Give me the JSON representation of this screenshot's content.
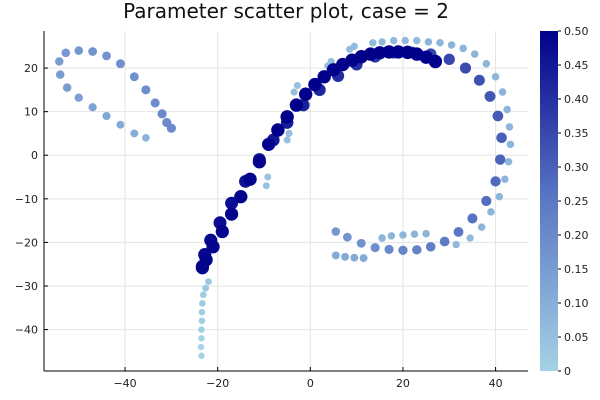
{
  "chart_data": {
    "type": "scatter",
    "title": "Parameter scatter plot, case = 2",
    "xlabel": "",
    "ylabel": "",
    "xlim": [
      -57.5,
      47
    ],
    "ylim": [
      -49.5,
      28.5
    ],
    "xticks": [
      -40,
      -20,
      0,
      20,
      40
    ],
    "yticks": [
      -40,
      -30,
      -20,
      -10,
      0,
      10,
      20
    ],
    "xtick_labels": [
      "−40",
      "−20",
      "0",
      "20",
      "40"
    ],
    "ytick_labels": [
      "−40",
      "−30",
      "−20",
      "−10",
      "0",
      "10",
      "20"
    ],
    "grid": true,
    "legend": "none",
    "colorbar": {
      "min": 0,
      "max": 0.5,
      "ticks": [
        0,
        0.05,
        0.1,
        0.15,
        0.2,
        0.25,
        0.3,
        0.35,
        0.4,
        0.45,
        0.5
      ],
      "tick_labels": [
        "0",
        "0.05",
        "0.10",
        "0.15",
        "0.20",
        "0.25",
        "0.30",
        "0.35",
        "0.40",
        "0.45",
        "0.50"
      ],
      "color_low": "#a5d2e5",
      "color_mid": "#5b78c4",
      "color_high": "#00008b"
    },
    "series": [
      {
        "points": [
          [
            -23.5,
            -46
          ],
          [
            -23.6,
            -44
          ],
          [
            -23.5,
            -42
          ],
          [
            -23.5,
            -40
          ],
          [
            -23.4,
            -38
          ],
          [
            -23.4,
            -36
          ],
          [
            -23.3,
            -34
          ],
          [
            -23.1,
            -32
          ],
          [
            -22.6,
            -30.5
          ],
          [
            -22,
            -29
          ]
        ],
        "c": [
          0.0,
          0.0,
          0.0,
          0.01,
          0.01,
          0.01,
          0.02,
          0.02,
          0.03,
          0.03
        ]
      },
      {
        "points": [
          [
            -35.5,
            4
          ],
          [
            -38,
            5
          ],
          [
            -41,
            7
          ],
          [
            -44,
            9
          ],
          [
            -47,
            11
          ],
          [
            -50,
            13.2
          ],
          [
            -52.5,
            15.5
          ],
          [
            -54,
            18.5
          ],
          [
            -54.2,
            21.5
          ],
          [
            -52.8,
            23.5
          ],
          [
            -50,
            24
          ],
          [
            -47,
            23.8
          ],
          [
            -44,
            22.8
          ],
          [
            -41,
            21
          ],
          [
            -38,
            18
          ],
          [
            -35.5,
            15
          ],
          [
            -33.5,
            12
          ],
          [
            -32,
            9.5
          ],
          [
            -31,
            7.5
          ],
          [
            -30,
            6.2
          ]
        ],
        "c": [
          0.09,
          0.1,
          0.11,
          0.12,
          0.13,
          0.14,
          0.15,
          0.15,
          0.15,
          0.16,
          0.16,
          0.17,
          0.17,
          0.18,
          0.18,
          0.19,
          0.19,
          0.2,
          0.2,
          0.2
        ]
      },
      {
        "points": [
          [
            -9.5,
            -7
          ],
          [
            -9.2,
            -5
          ],
          [
            -5,
            3.5
          ],
          [
            -4.6,
            5
          ],
          [
            -3.5,
            14.5
          ],
          [
            -2.8,
            16
          ],
          [
            3.8,
            20.5
          ],
          [
            4.5,
            21.5
          ],
          [
            8.5,
            24.3
          ],
          [
            9.5,
            25
          ],
          [
            13.5,
            25.8
          ],
          [
            15.5,
            26
          ],
          [
            18,
            26.3
          ],
          [
            20.5,
            26.3
          ],
          [
            23,
            26.3
          ],
          [
            25.5,
            26
          ],
          [
            28,
            25.8
          ],
          [
            30.5,
            25.3
          ],
          [
            33,
            24.5
          ],
          [
            35.5,
            23.2
          ],
          [
            38,
            21
          ],
          [
            40,
            18
          ],
          [
            41.5,
            14.5
          ],
          [
            42.5,
            10.5
          ],
          [
            43,
            6.5
          ],
          [
            43.2,
            2.5
          ],
          [
            42.8,
            -1.5
          ],
          [
            42,
            -5.5
          ],
          [
            40.8,
            -9.5
          ],
          [
            39,
            -13
          ],
          [
            37,
            -16.5
          ],
          [
            34.5,
            -19
          ],
          [
            31.5,
            -20.5
          ]
        ],
        "c": [
          0.04,
          0.04,
          0.05,
          0.05,
          0.05,
          0.05,
          0.06,
          0.06,
          0.06,
          0.06,
          0.07,
          0.07,
          0.07,
          0.07,
          0.07,
          0.08,
          0.08,
          0.08,
          0.08,
          0.08,
          0.08,
          0.08,
          0.08,
          0.08,
          0.08,
          0.08,
          0.08,
          0.08,
          0.08,
          0.08,
          0.08,
          0.07,
          0.07
        ]
      },
      {
        "points": [
          [
            5.5,
            -23
          ],
          [
            7.5,
            -23.3
          ],
          [
            9.5,
            -23.5
          ],
          [
            11.5,
            -23.6
          ],
          [
            15.5,
            -19
          ],
          [
            17.5,
            -18.5
          ],
          [
            20,
            -18.3
          ],
          [
            22.5,
            -18.1
          ],
          [
            25,
            -18
          ]
        ],
        "c": [
          0.11,
          0.11,
          0.11,
          0.11,
          0.08,
          0.08,
          0.08,
          0.08,
          0.08
        ]
      },
      {
        "points": [
          [
            5.5,
            -17.5
          ],
          [
            8,
            -18.8
          ],
          [
            11,
            -20.2
          ],
          [
            14,
            -21.2
          ],
          [
            17,
            -21.6
          ],
          [
            20,
            -21.8
          ],
          [
            23,
            -21.7
          ],
          [
            26,
            -21
          ],
          [
            29,
            -19.8
          ],
          [
            32,
            -17.6
          ],
          [
            35,
            -14.5
          ],
          [
            38,
            -10.5
          ],
          [
            40,
            -6
          ],
          [
            41,
            -1
          ],
          [
            41.3,
            4
          ],
          [
            40.5,
            9
          ],
          [
            38.8,
            13.5
          ],
          [
            36.5,
            17.2
          ],
          [
            33.5,
            20
          ],
          [
            30,
            22
          ],
          [
            26,
            23.2
          ],
          [
            22,
            23.6
          ],
          [
            18,
            23.5
          ],
          [
            14,
            22.6
          ],
          [
            10,
            20.8
          ],
          [
            6,
            18.2
          ],
          [
            2,
            15
          ],
          [
            -1.5,
            11.5
          ],
          [
            -5,
            7.5
          ],
          [
            -8,
            3.5
          ],
          [
            -11,
            -1
          ],
          [
            -14,
            -6
          ],
          [
            -17,
            -11
          ],
          [
            -19.5,
            -15.5
          ],
          [
            -21.5,
            -19.5
          ],
          [
            -22.8,
            -22.8
          ],
          [
            -23.3,
            -25.5
          ]
        ],
        "c": [
          0.16,
          0.17,
          0.18,
          0.19,
          0.2,
          0.21,
          0.22,
          0.23,
          0.24,
          0.25,
          0.26,
          0.27,
          0.28,
          0.29,
          0.3,
          0.31,
          0.32,
          0.33,
          0.34,
          0.35,
          0.36,
          0.37,
          0.38,
          0.39,
          0.4,
          0.41,
          0.42,
          0.43,
          0.44,
          0.45,
          0.46,
          0.46,
          0.47,
          0.47,
          0.48,
          0.48,
          0.48
        ]
      },
      {
        "points": [
          [
            -23.3,
            -25.8
          ],
          [
            -22.5,
            -24
          ],
          [
            -21,
            -21
          ],
          [
            -19,
            -17.5
          ],
          [
            -17,
            -13.5
          ],
          [
            -15,
            -9.5
          ],
          [
            -13,
            -5.5
          ],
          [
            -11,
            -1.5
          ],
          [
            -9,
            2.5
          ],
          [
            -7,
            5.8
          ],
          [
            -5,
            8.8
          ],
          [
            -3,
            11.5
          ],
          [
            -1,
            14
          ],
          [
            1,
            16.2
          ],
          [
            3,
            18
          ],
          [
            5,
            19.6
          ],
          [
            7,
            20.8
          ],
          [
            9,
            21.8
          ],
          [
            11,
            22.6
          ],
          [
            13,
            23.2
          ],
          [
            15,
            23.5
          ],
          [
            17,
            23.7
          ],
          [
            19,
            23.7
          ],
          [
            21,
            23.6
          ],
          [
            23,
            23.2
          ],
          [
            25,
            22.5
          ],
          [
            27,
            21.5
          ]
        ],
        "c": [
          0.49,
          0.49,
          0.49,
          0.49,
          0.49,
          0.49,
          0.49,
          0.49,
          0.49,
          0.5,
          0.5,
          0.5,
          0.5,
          0.5,
          0.5,
          0.5,
          0.5,
          0.5,
          0.5,
          0.5,
          0.5,
          0.5,
          0.5,
          0.5,
          0.5,
          0.5,
          0.5
        ]
      }
    ]
  }
}
